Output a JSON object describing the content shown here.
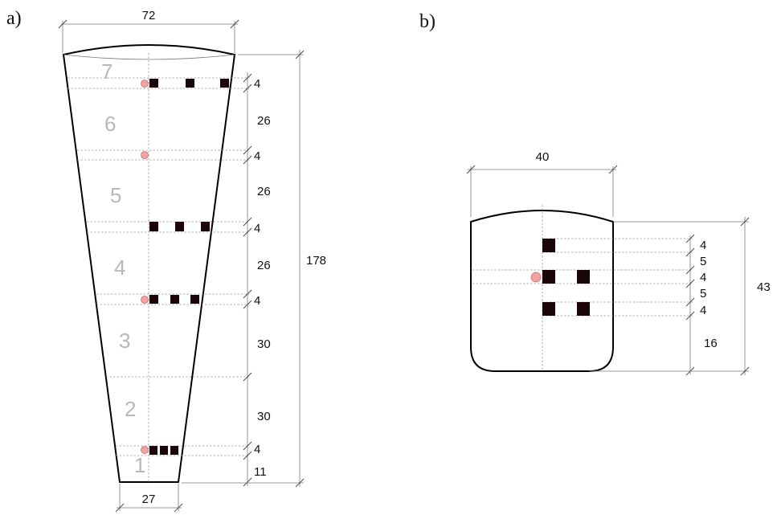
{
  "panel_a": {
    "label": "a)",
    "top_width": "72",
    "bottom_width": "27",
    "total_height": "178",
    "segments": [
      "1",
      "2",
      "3",
      "4",
      "5",
      "6",
      "7"
    ],
    "dims": [
      "4",
      "26",
      "4",
      "26",
      "4",
      "26",
      "4",
      "30",
      "30",
      "4",
      "11"
    ]
  },
  "panel_b": {
    "label": "b)",
    "width": "40",
    "total_height": "43",
    "dims": [
      "4",
      "5",
      "4",
      "5",
      "4",
      "16"
    ]
  },
  "colors": {
    "sensor_square": "#1a0608",
    "sensor_dot": "#f2a3a3"
  }
}
